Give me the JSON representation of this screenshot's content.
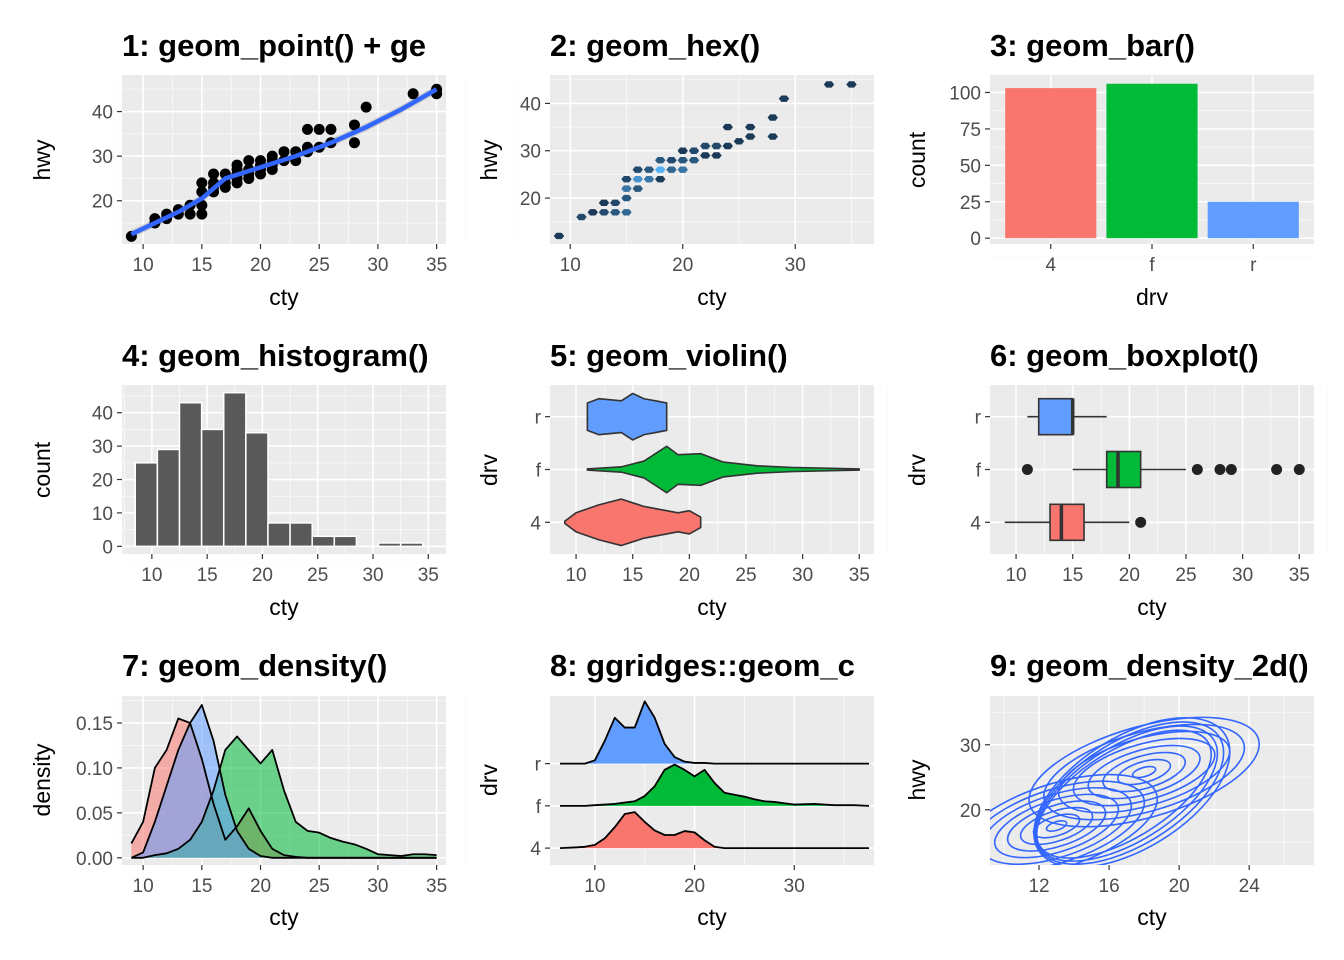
{
  "colors": {
    "panel_bg": "#ebebeb",
    "grid_major": "#ffffff",
    "drv_4": "#f8766d",
    "drv_f": "#00ba38",
    "drv_r": "#619cff",
    "smooth_line": "#3366ff",
    "points": "#000000",
    "hist_bar": "#595959"
  },
  "chart_data": [
    {
      "id": "p1",
      "type": "scatter",
      "title": "1: geom_point() + ge",
      "xlabel": "cty",
      "ylabel": "hwy",
      "xlim": [
        8.2,
        35.8
      ],
      "ylim": [
        10.3,
        48.2
      ],
      "xticks": [
        10,
        15,
        20,
        25,
        30,
        35
      ],
      "yticks": [
        20,
        30,
        40
      ],
      "points": [
        [
          9,
          12
        ],
        [
          11,
          15
        ],
        [
          11,
          16
        ],
        [
          12,
          16
        ],
        [
          12,
          17
        ],
        [
          13,
          17
        ],
        [
          13,
          18
        ],
        [
          14,
          17
        ],
        [
          14,
          19
        ],
        [
          15,
          17
        ],
        [
          15,
          19
        ],
        [
          15,
          22
        ],
        [
          15,
          24
        ],
        [
          16,
          22
        ],
        [
          16,
          23
        ],
        [
          16,
          24
        ],
        [
          16,
          26
        ],
        [
          17,
          23
        ],
        [
          17,
          24
        ],
        [
          17,
          26
        ],
        [
          18,
          24
        ],
        [
          18,
          25
        ],
        [
          18,
          26
        ],
        [
          18,
          27
        ],
        [
          18,
          28
        ],
        [
          19,
          25
        ],
        [
          19,
          26
        ],
        [
          19,
          27
        ],
        [
          19,
          29
        ],
        [
          20,
          26
        ],
        [
          20,
          27
        ],
        [
          20,
          28
        ],
        [
          20,
          29
        ],
        [
          21,
          27
        ],
        [
          21,
          28
        ],
        [
          21,
          29
        ],
        [
          21,
          30
        ],
        [
          22,
          29
        ],
        [
          22,
          31
        ],
        [
          23,
          29
        ],
        [
          23,
          31
        ],
        [
          24,
          31
        ],
        [
          24,
          32
        ],
        [
          25,
          32
        ],
        [
          26,
          33
        ],
        [
          24,
          36
        ],
        [
          25,
          36
        ],
        [
          26,
          36
        ],
        [
          28,
          33
        ],
        [
          28,
          37
        ],
        [
          29,
          41
        ],
        [
          33,
          44
        ],
        [
          35,
          44
        ],
        [
          35,
          45
        ]
      ],
      "smooth": [
        [
          9,
          12.5
        ],
        [
          11,
          15
        ],
        [
          13,
          17.5
        ],
        [
          15,
          20.5
        ],
        [
          17,
          25
        ],
        [
          20,
          27.5
        ],
        [
          23,
          30
        ],
        [
          26,
          33
        ],
        [
          29,
          36.5
        ],
        [
          32,
          40.5
        ],
        [
          35,
          45
        ]
      ]
    },
    {
      "id": "p2",
      "type": "heatmap",
      "title": "2: geom_hex()",
      "xlabel": "cty",
      "ylabel": "hwy",
      "xlim": [
        8.2,
        37
      ],
      "ylim": [
        10.3,
        46
      ],
      "xticks": [
        10,
        20,
        30
      ],
      "yticks": [
        20,
        30,
        40
      ],
      "hexes": [
        [
          9,
          12
        ],
        [
          11,
          16
        ],
        [
          12,
          17
        ],
        [
          13,
          17
        ],
        [
          13,
          19
        ],
        [
          14,
          17
        ],
        [
          14,
          19
        ],
        [
          15,
          17
        ],
        [
          15,
          20
        ],
        [
          15,
          22
        ],
        [
          15,
          24
        ],
        [
          16,
          22
        ],
        [
          16,
          24
        ],
        [
          16,
          26
        ],
        [
          17,
          24
        ],
        [
          17,
          26
        ],
        [
          18,
          24
        ],
        [
          18,
          26
        ],
        [
          18,
          28
        ],
        [
          19,
          26
        ],
        [
          19,
          28
        ],
        [
          20,
          26
        ],
        [
          20,
          28
        ],
        [
          20,
          30
        ],
        [
          21,
          28
        ],
        [
          21,
          30
        ],
        [
          22,
          29
        ],
        [
          22,
          31
        ],
        [
          23,
          29
        ],
        [
          23,
          31
        ],
        [
          24,
          31
        ],
        [
          25,
          32
        ],
        [
          26,
          33
        ],
        [
          24,
          35
        ],
        [
          26,
          35
        ],
        [
          28,
          33
        ],
        [
          28,
          37
        ],
        [
          29,
          41
        ],
        [
          33,
          44
        ],
        [
          35,
          44
        ]
      ],
      "hex_counts": [
        2,
        3,
        2,
        3,
        2,
        4,
        3,
        5,
        4,
        6,
        3,
        4,
        8,
        3,
        6,
        4,
        2,
        10,
        4,
        5,
        3,
        6,
        4,
        2,
        4,
        3,
        2,
        3,
        2,
        3,
        2,
        2,
        2,
        2,
        2,
        2,
        2,
        2,
        2,
        2
      ]
    },
    {
      "id": "p3",
      "type": "bar",
      "title": "3: geom_bar()",
      "xlabel": "drv",
      "ylabel": "count",
      "categories": [
        "4",
        "f",
        "r"
      ],
      "values": [
        103,
        106,
        25
      ],
      "ylim": [
        -4,
        112
      ],
      "yticks": [
        0,
        25,
        50,
        75,
        100
      ]
    },
    {
      "id": "p4",
      "type": "bar",
      "title": "4: geom_histogram()",
      "xlabel": "cty",
      "ylabel": "count",
      "bin_width": 2,
      "bin_centers": [
        9.5,
        11.5,
        13.5,
        15.5,
        17.5,
        19.5,
        21.5,
        23.5,
        25.5,
        27.5,
        29.5,
        31.5,
        33.5
      ],
      "values": [
        25,
        29,
        43,
        35,
        46,
        34,
        7,
        7,
        3,
        3,
        0,
        1,
        1
      ],
      "xlim": [
        7.3,
        36.6
      ],
      "ylim": [
        -2.3,
        48.3
      ],
      "xticks": [
        10,
        15,
        20,
        25,
        30,
        35
      ],
      "yticks": [
        0,
        10,
        20,
        30,
        40
      ]
    },
    {
      "id": "p5",
      "type": "area",
      "title": "5: geom_violin()",
      "xlabel": "cty",
      "ylabel": "drv",
      "categories": [
        "4",
        "f",
        "r"
      ],
      "xlim": [
        7.7,
        36.3
      ],
      "xticks": [
        10,
        15,
        20,
        25,
        30,
        35
      ],
      "violins": [
        {
          "name": "4",
          "x": [
            9,
            10,
            12,
            14,
            16,
            18,
            19,
            20,
            21
          ],
          "width": [
            0.02,
            0.18,
            0.33,
            0.44,
            0.3,
            0.22,
            0.18,
            0.22,
            0.1
          ]
        },
        {
          "name": "f",
          "x": [
            11,
            14,
            16,
            18,
            19,
            21,
            23,
            26,
            29,
            33,
            35
          ],
          "width": [
            0.01,
            0.05,
            0.16,
            0.44,
            0.28,
            0.3,
            0.14,
            0.07,
            0.04,
            0.02,
            0.01
          ]
        },
        {
          "name": "r",
          "x": [
            11,
            12,
            14,
            15,
            16,
            17,
            18
          ],
          "width": [
            0.26,
            0.34,
            0.3,
            0.44,
            0.34,
            0.3,
            0.26
          ]
        }
      ]
    },
    {
      "id": "p6",
      "type": "bar",
      "title": "6: geom_boxplot()",
      "xlabel": "cty",
      "ylabel": "drv",
      "categories": [
        "4",
        "f",
        "r"
      ],
      "xlim": [
        7.7,
        36.3
      ],
      "xticks": [
        10,
        15,
        20,
        25,
        30,
        35
      ],
      "boxes": [
        {
          "name": "4",
          "lower_whisker": 9,
          "q1": 13,
          "median": 14,
          "q3": 16,
          "upper_whisker": 20,
          "outliers": [
            21
          ]
        },
        {
          "name": "f",
          "lower_whisker": 15,
          "q1": 18,
          "median": 19,
          "q3": 21,
          "upper_whisker": 25,
          "outliers": [
            11,
            26,
            28,
            29,
            33,
            35
          ]
        },
        {
          "name": "r",
          "lower_whisker": 11,
          "q1": 12,
          "median": 15,
          "q3": 15,
          "upper_whisker": 18,
          "outliers": []
        }
      ]
    },
    {
      "id": "p7",
      "type": "area",
      "title": "7: geom_density()",
      "xlabel": "cty",
      "ylabel": "density",
      "xlim": [
        8.2,
        35.8
      ],
      "ylim": [
        -0.008,
        0.18
      ],
      "xticks": [
        10,
        15,
        20,
        25,
        30,
        35
      ],
      "yticks": [
        0,
        0.05,
        0.1,
        0.15
      ],
      "ytick_labels": [
        "0.00",
        "0.05",
        "0.10",
        "0.15"
      ],
      "x": [
        9,
        10,
        11,
        12,
        13,
        14,
        15,
        16,
        17,
        18,
        19,
        20,
        21,
        22,
        23,
        24,
        25,
        26,
        27,
        28,
        29,
        30,
        31,
        32,
        33,
        34,
        35
      ],
      "series": [
        {
          "name": "4",
          "values": [
            0.016,
            0.04,
            0.1,
            0.12,
            0.155,
            0.15,
            0.11,
            0.06,
            0.02,
            0.035,
            0.055,
            0.03,
            0.01,
            0.003,
            0.001,
            0,
            0,
            0,
            0,
            0,
            0,
            0,
            0,
            0,
            0,
            0,
            0
          ]
        },
        {
          "name": "f",
          "values": [
            0,
            0,
            0.003,
            0.005,
            0.01,
            0.02,
            0.04,
            0.075,
            0.12,
            0.135,
            0.12,
            0.105,
            0.12,
            0.075,
            0.04,
            0.03,
            0.028,
            0.022,
            0.018,
            0.015,
            0.01,
            0.004,
            0.003,
            0.002,
            0.004,
            0.004,
            0.003
          ]
        },
        {
          "name": "r",
          "values": [
            0,
            0.006,
            0.04,
            0.08,
            0.12,
            0.15,
            0.17,
            0.13,
            0.07,
            0.03,
            0.01,
            0.002,
            0,
            0,
            0,
            0,
            0,
            0,
            0,
            0,
            0,
            0,
            0,
            0,
            0,
            0,
            0
          ]
        }
      ]
    },
    {
      "id": "p8",
      "type": "area",
      "title": "8: ggridges::geom_c",
      "xlabel": "cty",
      "ylabel": "drv",
      "categories": [
        "4",
        "f",
        "r"
      ],
      "xlim": [
        5.5,
        38
      ],
      "xticks": [
        10,
        20,
        30
      ],
      "ridge_x": [
        6.5,
        8,
        9,
        10,
        11,
        12,
        13,
        14,
        15,
        16,
        17,
        18,
        19,
        20,
        21,
        22,
        23,
        24,
        25,
        26,
        27,
        28,
        29,
        30,
        32,
        34,
        36,
        37.5
      ],
      "ridges": [
        {
          "name": "4",
          "values": [
            0,
            0.01,
            0.02,
            0.05,
            0.15,
            0.32,
            0.52,
            0.55,
            0.4,
            0.27,
            0.2,
            0.2,
            0.26,
            0.24,
            0.12,
            0.02,
            0,
            0,
            0,
            0,
            0,
            0,
            0,
            0,
            0,
            0,
            0,
            0
          ]
        },
        {
          "name": "f",
          "values": [
            0,
            0,
            0,
            0.01,
            0.02,
            0.03,
            0.05,
            0.07,
            0.15,
            0.3,
            0.55,
            0.63,
            0.55,
            0.45,
            0.55,
            0.35,
            0.2,
            0.17,
            0.14,
            0.1,
            0.07,
            0.06,
            0.04,
            0.02,
            0.03,
            0.01,
            0.01,
            0
          ]
        },
        {
          "name": "r",
          "values": [
            0,
            0,
            0,
            0.05,
            0.35,
            0.7,
            0.55,
            0.55,
            0.95,
            0.7,
            0.3,
            0.1,
            0.03,
            0.01,
            0.01,
            0,
            0,
            0,
            0,
            0,
            0,
            0,
            0,
            0,
            0,
            0,
            0,
            0
          ]
        }
      ]
    },
    {
      "id": "p9",
      "type": "line",
      "title": "9: geom_density_2d()",
      "xlabel": "cty",
      "ylabel": "hwy",
      "xlim": [
        9.2,
        27.7
      ],
      "ylim": [
        11.5,
        37.5
      ],
      "xticks": [
        12,
        16,
        20,
        24
      ],
      "yticks": [
        20,
        30
      ],
      "contour_centers": [
        [
          13,
          17.5
        ],
        [
          18,
          25.8
        ]
      ],
      "contour_levels": 12
    }
  ]
}
